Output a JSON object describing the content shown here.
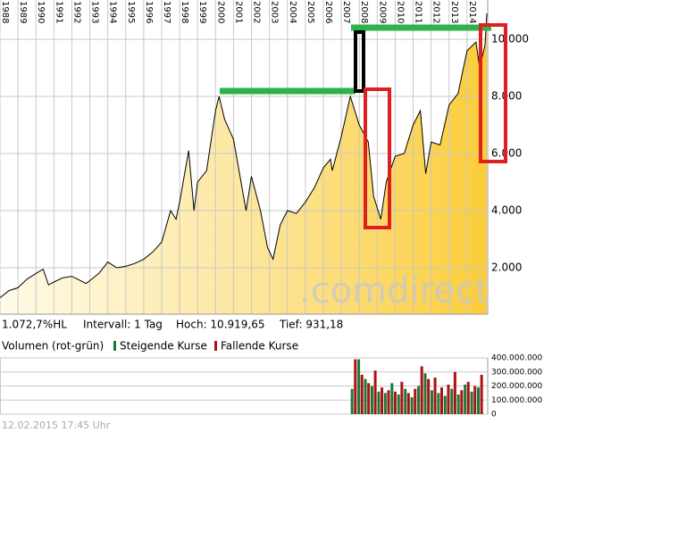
{
  "chart_data": [
    {
      "type": "area",
      "x": [
        1988.0,
        1988.5,
        1989.0,
        1989.5,
        1990.0,
        1990.4,
        1990.7,
        1991.0,
        1991.5,
        1992.0,
        1992.8,
        1993.0,
        1993.5,
        1994.0,
        1994.5,
        1995.0,
        1995.5,
        1996.0,
        1996.5,
        1997.0,
        1997.5,
        1997.8,
        1998.0,
        1998.5,
        1998.8,
        1999.0,
        1999.5,
        2000.0,
        2000.2,
        2000.5,
        2001.0,
        2001.7,
        2002.0,
        2002.5,
        2002.9,
        2003.2,
        2003.6,
        2004.0,
        2004.5,
        2005.0,
        2005.5,
        2006.0,
        2006.4,
        2006.5,
        2007.0,
        2007.5,
        2008.0,
        2008.5,
        2008.8,
        2009.2,
        2009.5,
        2010.0,
        2010.5,
        2011.0,
        2011.4,
        2011.7,
        2012.0,
        2012.5,
        2013.0,
        2013.5,
        2014.0,
        2014.5,
        2014.7,
        2015.0,
        2015.1
      ],
      "values": [
        950,
        1200,
        1300,
        1600,
        1800,
        1950,
        1400,
        1500,
        1650,
        1700,
        1450,
        1550,
        1800,
        2200,
        2000,
        2050,
        2150,
        2300,
        2550,
        2900,
        4000,
        3700,
        4300,
        6100,
        4000,
        5000,
        5400,
        7500,
        8000,
        7200,
        6500,
        4000,
        5200,
        4000,
        2700,
        2300,
        3500,
        4000,
        3900,
        4300,
        4800,
        5500,
        5800,
        5400,
        6600,
        8000,
        7000,
        6400,
        4500,
        3700,
        5000,
        5900,
        6000,
        7000,
        7500,
        5300,
        6400,
        6300,
        7700,
        8100,
        9600,
        9900,
        9000,
        9800,
        10900
      ],
      "xlim": [
        1988,
        2015.15
      ],
      "xticks": [
        1988,
        1989,
        1990,
        1991,
        1992,
        1993,
        1994,
        1995,
        1996,
        1997,
        1998,
        1999,
        2000,
        2001,
        2002,
        2003,
        2004,
        2005,
        2006,
        2007,
        2008,
        2009,
        2010,
        2011,
        2012,
        2013,
        2014
      ],
      "ylim": [
        375,
        11375
      ],
      "yticks": [
        {
          "value": 2000,
          "label": "2.000"
        },
        {
          "value": 4000,
          "label": "4.000"
        },
        {
          "value": 6000,
          "label": "6.000"
        },
        {
          "value": 8000,
          "label": "8.000"
        },
        {
          "value": 10000,
          "label": "10.000"
        }
      ],
      "color": "#000000",
      "grid": true,
      "watermark": ".comdirect",
      "stats": [
        "1.072,7%HL",
        "Intervall: 1 Tag",
        "Hoch: 10.919,65",
        "Tief: 931,18"
      ]
    },
    {
      "type": "bar",
      "title": "Volumen (rot-grün)",
      "xlim": [
        1988,
        2015.15
      ],
      "ylim": [
        0,
        400000000
      ],
      "yticks": [
        0,
        {
          "value": 100000000,
          "label": "100.000.000"
        },
        {
          "value": 200000000,
          "label": "200.000.000"
        },
        {
          "value": 300000000,
          "label": "300.000.000"
        },
        {
          "value": 400000000,
          "label": "400.000.000"
        }
      ],
      "grid": true,
      "series": [
        {
          "name": "Steigende Kurse",
          "color": "#1a7a3a",
          "x": [
            2007.6,
            2007.97,
            2008.34,
            2008.71,
            2009.08,
            2009.45,
            2009.82,
            2010.19,
            2010.56,
            2010.93,
            2011.3,
            2011.67,
            2012.04,
            2012.41,
            2012.78,
            2013.15,
            2013.52,
            2013.89,
            2014.26,
            2014.63
          ],
          "values": [
            180000000,
            390000000,
            250000000,
            200000000,
            160000000,
            150000000,
            220000000,
            140000000,
            180000000,
            120000000,
            200000000,
            290000000,
            170000000,
            150000000,
            130000000,
            180000000,
            140000000,
            210000000,
            160000000,
            190000000
          ]
        },
        {
          "name": "Fallende Kurse",
          "color": "#b01010",
          "x": [
            2007.78,
            2008.15,
            2008.52,
            2008.89,
            2009.26,
            2009.63,
            2010.0,
            2010.37,
            2010.74,
            2011.11,
            2011.48,
            2011.85,
            2012.22,
            2012.59,
            2012.96,
            2013.33,
            2013.7,
            2014.07,
            2014.44,
            2014.81
          ],
          "values": [
            390000000,
            280000000,
            220000000,
            310000000,
            190000000,
            170000000,
            160000000,
            230000000,
            150000000,
            180000000,
            340000000,
            250000000,
            260000000,
            190000000,
            210000000,
            300000000,
            170000000,
            230000000,
            200000000,
            280000000
          ]
        }
      ]
    }
  ],
  "timestamp": "12.02.2015 17:45 Uhr"
}
